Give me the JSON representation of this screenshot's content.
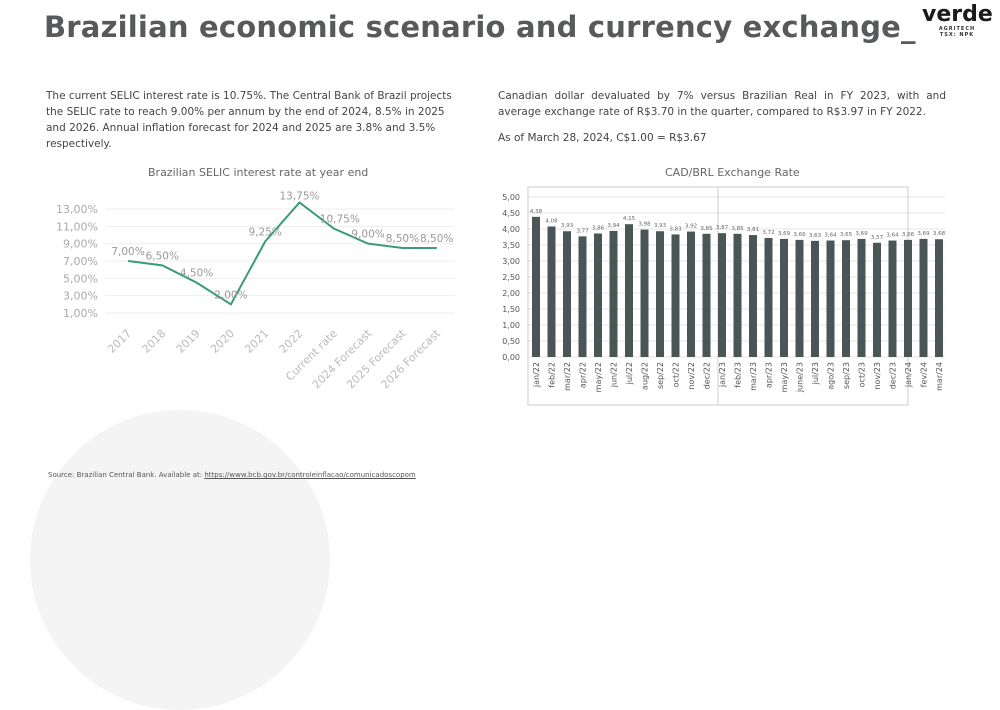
{
  "title": "Brazilian economic scenario and currency exchange_",
  "logo": {
    "name": "verde",
    "sub1": "AGRITECH",
    "sub2": "TSX: NPK"
  },
  "left_text": "The current SELIC interest rate is 10.75%. The Central Bank of Brazil projects the SELIC rate to reach 9.00% per annum by the end of 2024, 8.5% in 2025 and 2026. Annual inflation forecast for 2024 and 2025 are 3.8% and 3.5% respectively.",
  "right_text": "Canadian dollar devaluated by 7% versus Brazilian Real in FY 2023, with and average exchange rate of R$3.70 in the quarter, compared to R$3.97 in FY 2022.",
  "right_text2": "As of March 28, 2024, C$1.00 = R$3.67",
  "footer": {
    "label": "Source: Brazilian Central Bank. Available at: ",
    "link": "https://www.bcb.gov.br/controleinflacao/comunicadoscopom"
  },
  "chart_data": [
    {
      "type": "line",
      "title": "Brazilian SELIC interest rate at year end",
      "categories": [
        "2017",
        "2018",
        "2019",
        "2020",
        "2021",
        "2022",
        "Current rate",
        "2024 Forecast",
        "2025 Forecast",
        "2026 Forecast"
      ],
      "values": [
        7.0,
        6.5,
        4.5,
        2.0,
        9.25,
        13.75,
        10.75,
        9.0,
        8.5,
        8.5
      ],
      "labels": [
        "7,00%",
        "6,50%",
        "4,50%",
        "2,00%",
        "9,25%",
        "13,75%",
        "10,75%",
        "9,00%",
        "8,50%",
        "8,50%"
      ],
      "yticks": [
        "1,00%",
        "3,00%",
        "5,00%",
        "7,00%",
        "9,00%",
        "11,00%",
        "13,00%"
      ],
      "ylim": [
        1,
        13
      ],
      "grid": true,
      "color": "#3a9a7a"
    },
    {
      "type": "bar",
      "title": "CAD/BRL Exchange Rate",
      "categories": [
        "jan/22",
        "feb/22",
        "mar/22",
        "apr/22",
        "may/22",
        "jun/22",
        "jul/22",
        "aug/22",
        "sep/22",
        "oct/22",
        "nov/22",
        "dec/22",
        "jan/23",
        "feb/23",
        "mar/23",
        "apr/23",
        "may/23",
        "june/23",
        "jul/23",
        "ago/23",
        "sep/23",
        "oct/23",
        "nov/23",
        "dec/23",
        "jan/24",
        "fev/24",
        "mar/24"
      ],
      "values": [
        4.38,
        4.08,
        3.93,
        3.77,
        3.86,
        3.94,
        4.15,
        3.98,
        3.93,
        3.83,
        3.92,
        3.85,
        3.87,
        3.85,
        3.81,
        3.72,
        3.69,
        3.66,
        3.63,
        3.64,
        3.65,
        3.69,
        3.57,
        3.64,
        3.66,
        3.69,
        3.68
      ],
      "yticks": [
        "0,00",
        "0,50",
        "1,00",
        "1,50",
        "2,00",
        "2,50",
        "3,00",
        "3,50",
        "4,00",
        "4,50",
        "5,00"
      ],
      "ylim": [
        0,
        5
      ],
      "grid": true,
      "color": "#4a5556"
    }
  ]
}
